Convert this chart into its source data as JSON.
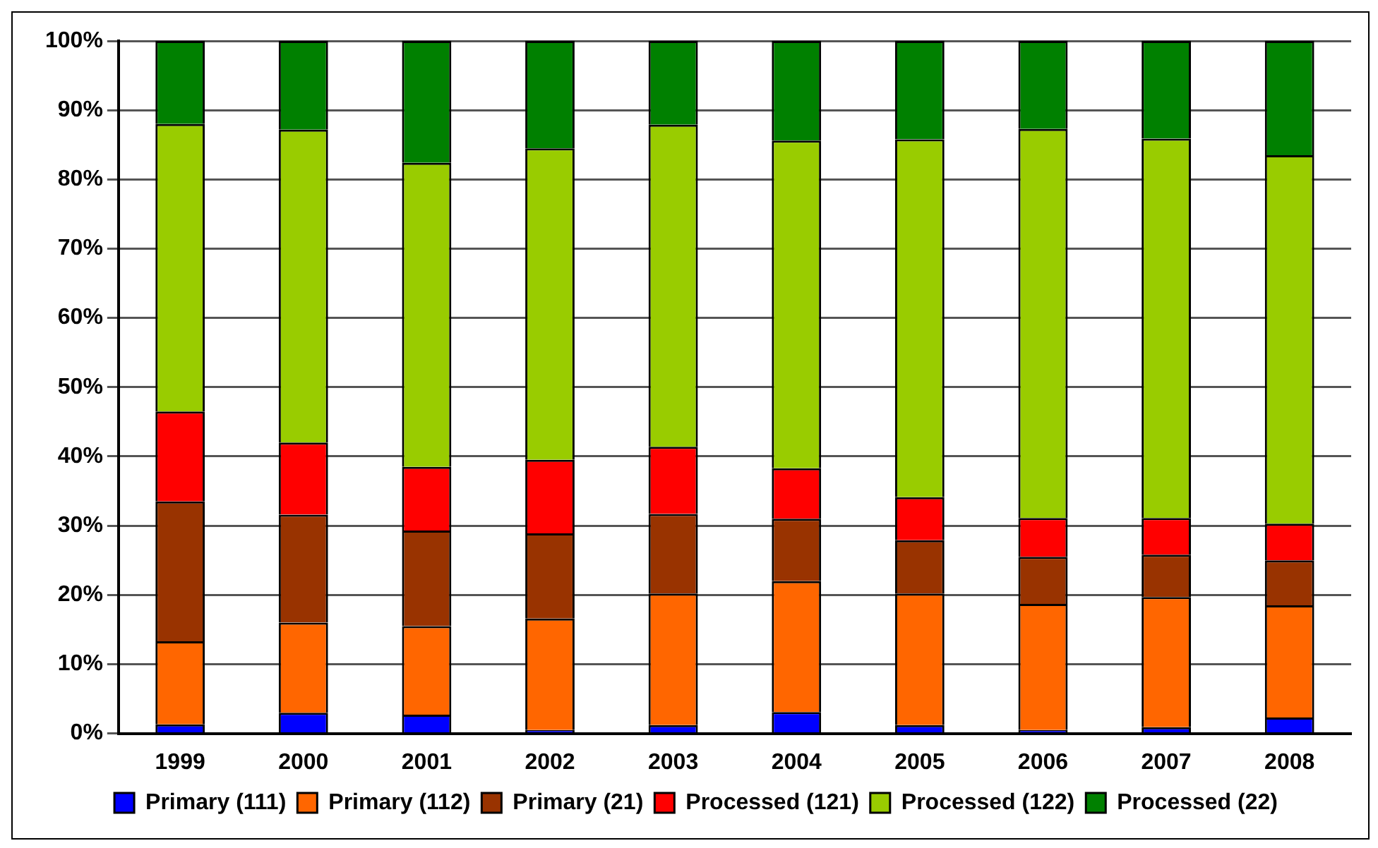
{
  "chart_data": {
    "type": "bar",
    "stacked": true,
    "categories": [
      "1999",
      "2000",
      "2001",
      "2002",
      "2003",
      "2004",
      "2005",
      "2006",
      "2007",
      "2008"
    ],
    "series": [
      {
        "name": "Primary (111)",
        "color": "#0000ff",
        "values": [
          1.3,
          3,
          2.7,
          0.5,
          1.2,
          3.1,
          1.2,
          0.5,
          0.9,
          2.3
        ]
      },
      {
        "name": "Primary (112)",
        "color": "#ff6600",
        "values": [
          12,
          13,
          12.8,
          16.1,
          19,
          18.9,
          19,
          18.2,
          18.8,
          16.2
        ]
      },
      {
        "name": "Primary (21)",
        "color": "#993300",
        "values": [
          20.2,
          15.6,
          13.8,
          12.3,
          11.5,
          9,
          7.7,
          6.8,
          6.1,
          6.5
        ]
      },
      {
        "name": "Processed (121)",
        "color": "#ff0000",
        "values": [
          13,
          10.4,
          9.2,
          10.6,
          9.7,
          7.3,
          6.2,
          5.6,
          5.3,
          5.3
        ]
      },
      {
        "name": "Processed (122)",
        "color": "#99cc00",
        "values": [
          41.5,
          45.2,
          43.9,
          45,
          46.5,
          47.3,
          51.7,
          56.2,
          54.8,
          53.2
        ]
      },
      {
        "name": "Processed (22)",
        "color": "#008000",
        "values": [
          12,
          12.8,
          17.6,
          15.5,
          12.1,
          14.4,
          14.2,
          12.7,
          14.1,
          16.5
        ]
      }
    ],
    "ylim": [
      0,
      100
    ],
    "yticks": [
      {
        "value": 0,
        "label": "0%"
      },
      {
        "value": 10,
        "label": "10%"
      },
      {
        "value": 20,
        "label": "20%"
      },
      {
        "value": 30,
        "label": "30%"
      },
      {
        "value": 40,
        "label": "40%"
      },
      {
        "value": 50,
        "label": "50%"
      },
      {
        "value": 60,
        "label": "60%"
      },
      {
        "value": 70,
        "label": "70%"
      },
      {
        "value": 80,
        "label": "80%"
      },
      {
        "value": 90,
        "label": "90%"
      },
      {
        "value": 100,
        "label": "100%"
      }
    ],
    "grid": "y",
    "legend": "bottom"
  }
}
